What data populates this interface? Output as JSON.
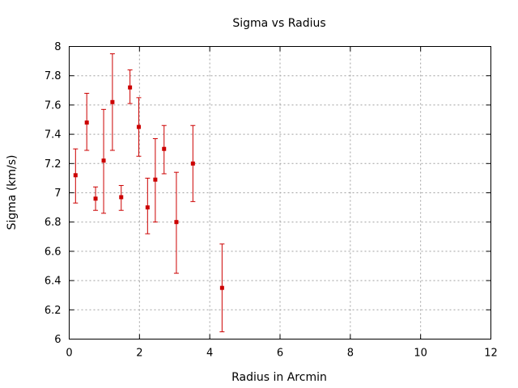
{
  "chart_data": {
    "type": "scatter",
    "title": "Sigma vs Radius",
    "xlabel": "Radius in Arcmin",
    "ylabel": "Sigma (km/s)",
    "xlim": [
      0,
      12
    ],
    "ylim": [
      6,
      8
    ],
    "x_ticks": [
      0,
      2,
      4,
      6,
      8,
      10,
      12
    ],
    "x_tick_labels": [
      "0",
      "2",
      "4",
      "6",
      "8",
      "10",
      "12"
    ],
    "y_ticks": [
      6,
      6.2,
      6.4,
      6.6,
      6.8,
      7,
      7.2,
      7.4,
      7.6,
      7.8,
      8
    ],
    "y_tick_labels": [
      "6",
      "6.2",
      "6.4",
      "6.6",
      "6.8",
      "7",
      "7.2",
      "7.4",
      "7.6",
      "7.8",
      "8"
    ],
    "grid": true,
    "marker_color": "#cc0000",
    "points": [
      {
        "x": 0.18,
        "y": 7.12,
        "ylow": 6.93,
        "yhigh": 7.3
      },
      {
        "x": 0.5,
        "y": 7.48,
        "ylow": 7.29,
        "yhigh": 7.68
      },
      {
        "x": 0.75,
        "y": 6.96,
        "ylow": 6.88,
        "yhigh": 7.04
      },
      {
        "x": 0.98,
        "y": 7.22,
        "ylow": 6.86,
        "yhigh": 7.57
      },
      {
        "x": 1.23,
        "y": 7.62,
        "ylow": 7.29,
        "yhigh": 7.95
      },
      {
        "x": 1.48,
        "y": 6.97,
        "ylow": 6.88,
        "yhigh": 7.05
      },
      {
        "x": 1.73,
        "y": 7.72,
        "ylow": 7.61,
        "yhigh": 7.84
      },
      {
        "x": 1.98,
        "y": 7.45,
        "ylow": 7.25,
        "yhigh": 7.65
      },
      {
        "x": 2.23,
        "y": 6.9,
        "ylow": 6.72,
        "yhigh": 7.1
      },
      {
        "x": 2.45,
        "y": 7.09,
        "ylow": 6.8,
        "yhigh": 7.37
      },
      {
        "x": 2.7,
        "y": 7.3,
        "ylow": 7.13,
        "yhigh": 7.46
      },
      {
        "x": 3.05,
        "y": 6.8,
        "ylow": 6.45,
        "yhigh": 7.14
      },
      {
        "x": 3.52,
        "y": 7.2,
        "ylow": 6.94,
        "yhigh": 7.46
      },
      {
        "x": 4.35,
        "y": 6.35,
        "ylow": 6.05,
        "yhigh": 6.65
      }
    ]
  }
}
